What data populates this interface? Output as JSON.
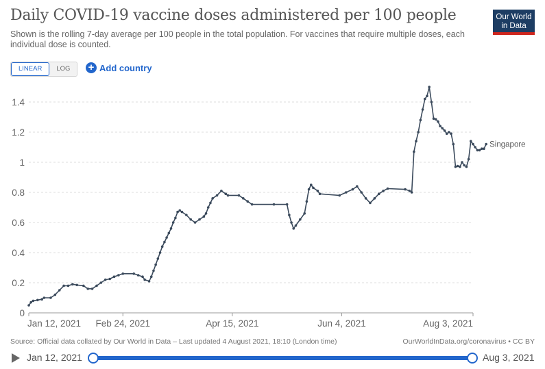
{
  "title": "Daily COVID-19 vaccine doses administered per 100 people",
  "subtitle": "Shown is the rolling 7-day average per 100 people in the total population. For vaccines that require multiple doses, each individual dose is counted.",
  "logo": {
    "line1": "Our World",
    "line2": "in Data"
  },
  "controls": {
    "linear_label": "LINEAR",
    "log_label": "LOG",
    "add_country_label": "Add country"
  },
  "colors": {
    "line": "#3b4a5c",
    "accent": "#2266cc",
    "grid": "#dddddd",
    "logo_bg": "#1d3d63",
    "logo_bar": "#ce261e"
  },
  "footer": {
    "source": "Source: Official data collated by Our World in Data – Last updated 4 August 2021, 18:10 (London time)",
    "credit": "OurWorldInData.org/coronavirus • CC BY"
  },
  "timeline": {
    "start": "Jan 12, 2021",
    "end": "Aug 3, 2021"
  },
  "chart_data": {
    "type": "line",
    "title": "Daily COVID-19 vaccine doses administered per 100 people",
    "x_ticks": [
      {
        "day": 0,
        "label": "Jan 12, 2021"
      },
      {
        "day": 43,
        "label": "Feb 24, 2021"
      },
      {
        "day": 93,
        "label": "Apr 15, 2021"
      },
      {
        "day": 143,
        "label": "Jun 4, 2021"
      },
      {
        "day": 203,
        "label": "Aug 3, 2021"
      }
    ],
    "y_ticks": [
      0,
      0.2,
      0.4,
      0.6,
      0.8,
      1,
      1.2,
      1.4
    ],
    "ylim": [
      0,
      1.5
    ],
    "xlim": [
      0,
      203
    ],
    "series": [
      {
        "name": "Singapore",
        "points": [
          [
            0,
            0.05
          ],
          [
            1,
            0.07
          ],
          [
            2,
            0.08
          ],
          [
            4,
            0.085
          ],
          [
            6,
            0.09
          ],
          [
            7,
            0.1
          ],
          [
            10,
            0.1
          ],
          [
            12,
            0.12
          ],
          [
            14,
            0.15
          ],
          [
            16,
            0.18
          ],
          [
            18,
            0.18
          ],
          [
            20,
            0.19
          ],
          [
            22,
            0.185
          ],
          [
            25,
            0.18
          ],
          [
            27,
            0.16
          ],
          [
            29,
            0.16
          ],
          [
            31,
            0.18
          ],
          [
            33,
            0.2
          ],
          [
            35,
            0.22
          ],
          [
            37,
            0.225
          ],
          [
            39,
            0.24
          ],
          [
            41,
            0.25
          ],
          [
            43,
            0.26
          ],
          [
            48,
            0.26
          ],
          [
            50,
            0.25
          ],
          [
            52,
            0.24
          ],
          [
            53,
            0.22
          ],
          [
            55,
            0.21
          ],
          [
            56,
            0.24
          ],
          [
            57,
            0.28
          ],
          [
            58,
            0.32
          ],
          [
            59,
            0.36
          ],
          [
            60,
            0.4
          ],
          [
            61,
            0.44
          ],
          [
            62,
            0.47
          ],
          [
            63,
            0.5
          ],
          [
            64,
            0.53
          ],
          [
            65,
            0.56
          ],
          [
            66,
            0.6
          ],
          [
            67,
            0.63
          ],
          [
            68,
            0.67
          ],
          [
            69,
            0.68
          ],
          [
            70,
            0.67
          ],
          [
            72,
            0.65
          ],
          [
            74,
            0.62
          ],
          [
            76,
            0.6
          ],
          [
            78,
            0.62
          ],
          [
            80,
            0.64
          ],
          [
            81,
            0.66
          ],
          [
            82,
            0.7
          ],
          [
            83,
            0.73
          ],
          [
            84,
            0.76
          ],
          [
            86,
            0.78
          ],
          [
            88,
            0.81
          ],
          [
            90,
            0.79
          ],
          [
            91,
            0.78
          ],
          [
            96,
            0.78
          ],
          [
            98,
            0.76
          ],
          [
            100,
            0.74
          ],
          [
            102,
            0.72
          ],
          [
            112,
            0.72
          ],
          [
            118,
            0.72
          ],
          [
            119,
            0.65
          ],
          [
            120,
            0.6
          ],
          [
            121,
            0.56
          ],
          [
            122,
            0.58
          ],
          [
            124,
            0.62
          ],
          [
            126,
            0.66
          ],
          [
            127,
            0.74
          ],
          [
            128,
            0.82
          ],
          [
            129,
            0.85
          ],
          [
            130,
            0.83
          ],
          [
            132,
            0.81
          ],
          [
            133,
            0.79
          ],
          [
            142,
            0.78
          ],
          [
            145,
            0.8
          ],
          [
            148,
            0.82
          ],
          [
            150,
            0.84
          ],
          [
            152,
            0.8
          ],
          [
            154,
            0.76
          ],
          [
            156,
            0.73
          ],
          [
            158,
            0.76
          ],
          [
            160,
            0.79
          ],
          [
            162,
            0.81
          ],
          [
            164,
            0.825
          ],
          [
            172,
            0.82
          ],
          [
            174,
            0.81
          ],
          [
            175,
            0.8
          ],
          [
            176,
            1.07
          ],
          [
            177,
            1.14
          ],
          [
            178,
            1.2
          ],
          [
            179,
            1.28
          ],
          [
            180,
            1.35
          ],
          [
            181,
            1.42
          ],
          [
            182,
            1.44
          ],
          [
            183,
            1.5
          ],
          [
            184,
            1.4
          ],
          [
            185,
            1.29
          ],
          [
            186,
            1.285
          ],
          [
            187,
            1.27
          ],
          [
            188,
            1.24
          ],
          [
            189,
            1.225
          ],
          [
            190,
            1.21
          ],
          [
            191,
            1.19
          ],
          [
            192,
            1.2
          ],
          [
            193,
            1.19
          ],
          [
            194,
            1.12
          ],
          [
            195,
            0.97
          ],
          [
            196,
            0.975
          ],
          [
            197,
            0.97
          ],
          [
            198,
            1.0
          ],
          [
            199,
            0.98
          ],
          [
            200,
            0.97
          ],
          [
            201,
            1.02
          ],
          [
            202,
            1.14
          ],
          [
            203,
            1.12
          ],
          [
            204,
            1.1
          ],
          [
            205,
            1.08
          ],
          [
            206,
            1.08
          ],
          [
            207,
            1.09
          ],
          [
            208,
            1.09
          ],
          [
            209,
            1.12
          ]
        ]
      }
    ]
  }
}
